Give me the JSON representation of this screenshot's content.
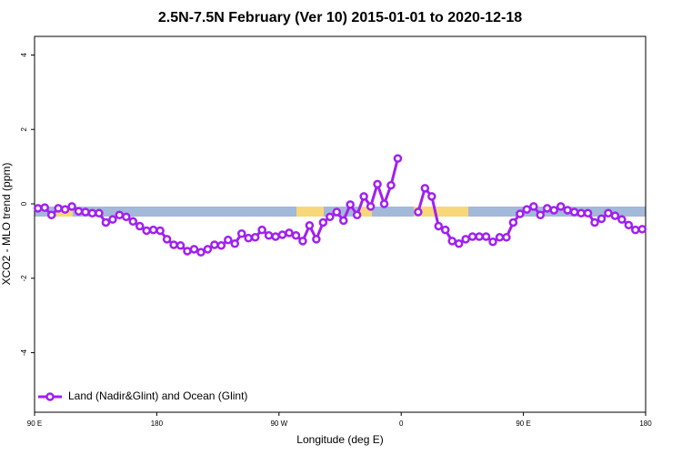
{
  "chart_data": {
    "type": "line",
    "title": "2.5N-7.5N February (Ver 10)   2015-01-01 to 2020-12-18",
    "x_label": "Longitude (deg E)",
    "y_label": "XCO2 - MLO trend (ppm)",
    "x": [
      92.5,
      97.5,
      102.5,
      107.5,
      112.5,
      117.5,
      122.5,
      127.5,
      132.5,
      137.5,
      142.5,
      147.5,
      152.5,
      157.5,
      162.5,
      167.5,
      172.5,
      177.5,
      182.5,
      187.5,
      192.5,
      197.5,
      202.5,
      207.5,
      212.5,
      217.5,
      222.5,
      227.5,
      232.5,
      237.5,
      242.5,
      247.5,
      252.5,
      257.5,
      262.5,
      267.5,
      272.5,
      277.5,
      282.5,
      287.5,
      292.5,
      297.5,
      302.5,
      307.5,
      312.5,
      317.5,
      322.5,
      327.5,
      332.5,
      337.5,
      342.5,
      347.5,
      352.5,
      357.5,
      362.5,
      367.5,
      372.5,
      377.5,
      382.5,
      387.5,
      392.5,
      397.5,
      402.5,
      407.5,
      412.5,
      417.5,
      422.5,
      427.5,
      432.5,
      437.5,
      442.5,
      447.5,
      452.5,
      457.5,
      462.5,
      467.5,
      472.5,
      477.5,
      482.5,
      487.5,
      492.5,
      497.5,
      502.5,
      507.5,
      512.5,
      517.5,
      522.5,
      527.5,
      532.5,
      537.5
    ],
    "series": [
      {
        "name": "Land (Nadir&Glint) and Ocean (Glint)",
        "color": "#a020f0",
        "values": [
          -0.12,
          -0.1,
          -0.3,
          -0.12,
          -0.15,
          -0.07,
          -0.2,
          -0.22,
          -0.25,
          -0.25,
          -0.5,
          -0.42,
          -0.3,
          -0.35,
          -0.47,
          -0.6,
          -0.72,
          -0.7,
          -0.72,
          -0.95,
          -1.1,
          -1.12,
          -1.27,
          -1.22,
          -1.3,
          -1.22,
          -1.1,
          -1.12,
          -0.97,
          -1.07,
          -0.8,
          -0.92,
          -0.9,
          -0.7,
          -0.85,
          -0.88,
          -0.83,
          -0.78,
          -0.85,
          -1.0,
          -0.58,
          -0.95,
          -0.5,
          -0.35,
          -0.22,
          -0.45,
          -0.02,
          -0.3,
          0.2,
          -0.07,
          0.53,
          0.0,
          0.5,
          1.22,
          null,
          null,
          -0.22,
          0.42,
          0.2,
          -0.6,
          -0.7,
          -1.0,
          -1.07,
          -0.95,
          -0.88,
          -0.88,
          -0.88,
          -1.02,
          -0.9,
          -0.9,
          -0.5,
          -0.27,
          -0.15,
          -0.07,
          -0.3,
          -0.12,
          -0.17,
          -0.07,
          -0.17,
          -0.22,
          -0.25,
          -0.25,
          -0.5,
          -0.4,
          -0.25,
          -0.32,
          -0.42,
          -0.57,
          -0.7,
          -0.68
        ]
      }
    ],
    "xlim": [
      90,
      540
    ],
    "xticks": [
      {
        "value": 90,
        "label": "90 E"
      },
      {
        "value": 180,
        "label": "180"
      },
      {
        "value": 270,
        "label": "90 W"
      },
      {
        "value": 360,
        "label": "0"
      },
      {
        "value": 450,
        "label": "90 E"
      },
      {
        "value": 540,
        "label": "180"
      }
    ],
    "ylim": [
      -5.6,
      4.5
    ],
    "yticks": [
      -4,
      -2,
      0,
      2,
      4
    ],
    "legend": "bottom-left"
  }
}
